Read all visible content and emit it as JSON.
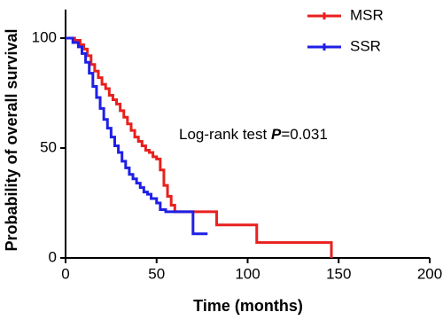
{
  "chart_data": {
    "type": "step",
    "x_label": "Time (months)",
    "y_label": "Probability of overall survival",
    "annotation": {
      "prefix": "Log-rank test",
      "stat": "P",
      "value": "=0.031"
    },
    "xlim": [
      0,
      200
    ],
    "ylim": [
      0,
      113
    ],
    "xticks": [
      0,
      50,
      100,
      150,
      200
    ],
    "yticks": [
      0,
      50,
      100
    ],
    "series": [
      {
        "name": "MSR",
        "color": "#e8201e",
        "x": [
          0,
          5,
          8,
          10,
          12,
          14,
          16,
          18,
          20,
          22,
          24,
          26,
          28,
          30,
          32,
          34,
          36,
          38,
          40,
          42,
          44,
          46,
          48,
          50,
          52,
          54,
          56,
          58,
          60,
          83,
          105,
          146
        ],
        "values": [
          100,
          99,
          97,
          95,
          92,
          88,
          85,
          82,
          79,
          77,
          74,
          72,
          70,
          67,
          64,
          61,
          58,
          55,
          53,
          51,
          49,
          48,
          46,
          45,
          40,
          33,
          28,
          24,
          21,
          15,
          7,
          0
        ]
      },
      {
        "name": "SSR",
        "color": "#1f1fe6",
        "x": [
          0,
          4,
          7,
          9,
          11,
          13,
          15,
          17,
          19,
          21,
          23,
          25,
          27,
          29,
          31,
          33,
          35,
          37,
          39,
          41,
          43,
          45,
          47,
          50,
          52,
          55,
          70,
          78
        ],
        "values": [
          100,
          98,
          96,
          93,
          89,
          84,
          78,
          73,
          68,
          63,
          59,
          55,
          51,
          48,
          44,
          41,
          38,
          36,
          34,
          32,
          30,
          29,
          27,
          25,
          22,
          21,
          11,
          11
        ]
      }
    ]
  }
}
